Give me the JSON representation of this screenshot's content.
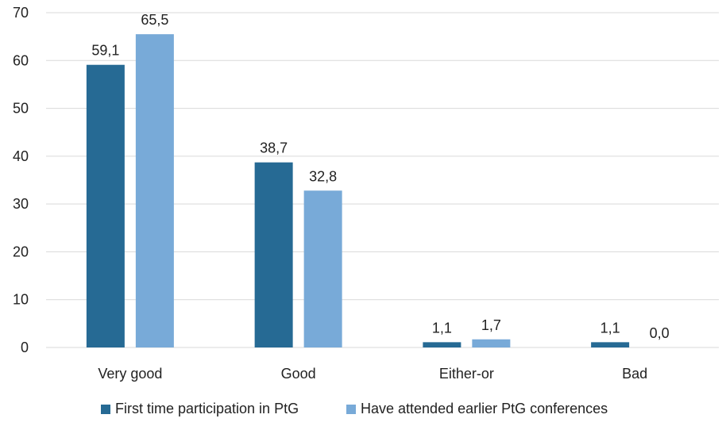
{
  "chart_data": {
    "type": "bar",
    "title": "",
    "xlabel": "",
    "ylabel": "",
    "categories": [
      "Very good",
      "Good",
      "Either-or",
      "Bad"
    ],
    "series": [
      {
        "name": "First time participation in PtG",
        "values": [
          59.1,
          38.7,
          1.1,
          1.1
        ],
        "labels": [
          "59,1",
          "38,7",
          "1,1",
          "1,1"
        ],
        "color": "#266a94"
      },
      {
        "name": "Have attended earlier PtG conferences",
        "values": [
          65.5,
          32.8,
          1.7,
          0.0
        ],
        "labels": [
          "65,5",
          "32,8",
          "1,7",
          "0,0"
        ],
        "color": "#78aad8"
      }
    ],
    "ylim": [
      0,
      70
    ],
    "yticks": [
      0,
      10,
      20,
      30,
      40,
      50,
      60,
      70
    ],
    "grid": true,
    "legend_position": "bottom"
  }
}
